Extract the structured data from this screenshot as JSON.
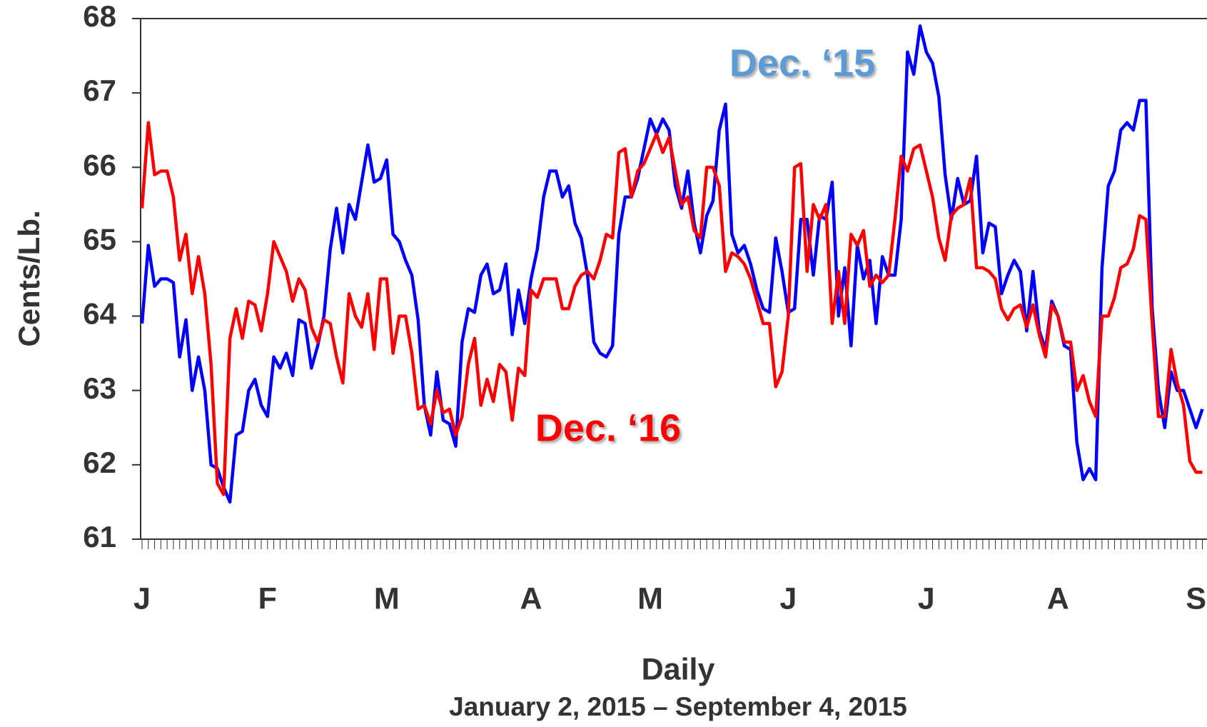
{
  "chart_data": {
    "type": "line",
    "y_label": "Cents/Lb.",
    "x_label": "Daily",
    "subtitle": "January 2, 2015 – September 4, 2015",
    "categories": [
      "J",
      null,
      null,
      null,
      null,
      null,
      null,
      null,
      null,
      null,
      null,
      null,
      null,
      null,
      null,
      null,
      null,
      null,
      null,
      null,
      "F",
      null,
      null,
      null,
      null,
      null,
      null,
      null,
      null,
      null,
      null,
      null,
      null,
      null,
      null,
      null,
      null,
      null,
      null,
      "M",
      null,
      null,
      null,
      null,
      null,
      null,
      null,
      null,
      null,
      null,
      null,
      null,
      null,
      null,
      null,
      null,
      null,
      null,
      null,
      null,
      null,
      null,
      "A",
      null,
      null,
      null,
      null,
      null,
      null,
      null,
      null,
      null,
      null,
      null,
      null,
      null,
      null,
      null,
      null,
      null,
      null,
      "M",
      null,
      null,
      null,
      null,
      null,
      null,
      null,
      null,
      null,
      null,
      null,
      null,
      null,
      null,
      null,
      null,
      null,
      null,
      null,
      null,
      null,
      "J",
      null,
      null,
      null,
      null,
      null,
      null,
      null,
      null,
      null,
      null,
      null,
      null,
      null,
      null,
      null,
      null,
      null,
      null,
      null,
      null,
      null,
      "J",
      null,
      null,
      null,
      null,
      null,
      null,
      null,
      null,
      null,
      null,
      null,
      null,
      null,
      null,
      null,
      null,
      null,
      null,
      null,
      null,
      "A",
      null,
      null,
      null,
      null,
      null,
      null,
      null,
      null,
      null,
      null,
      null,
      null,
      null,
      null,
      null,
      null,
      null,
      null,
      null,
      null,
      null,
      "S",
      null
    ],
    "series": [
      {
        "name": "Dec. ‘15",
        "color": "#0000ff",
        "label_color": "#5b9bd5",
        "values": [
          63.9,
          64.95,
          64.4,
          64.5,
          64.5,
          64.45,
          63.45,
          63.95,
          63.0,
          63.45,
          63.0,
          62.0,
          61.95,
          61.7,
          61.5,
          62.4,
          62.45,
          63.0,
          63.15,
          62.8,
          62.65,
          63.45,
          63.3,
          63.5,
          63.2,
          63.95,
          63.9,
          63.3,
          63.6,
          64.0,
          64.9,
          65.45,
          64.85,
          65.5,
          65.3,
          65.8,
          66.3,
          65.8,
          65.85,
          66.1,
          65.1,
          65.0,
          64.75,
          64.55,
          63.95,
          62.8,
          62.4,
          63.25,
          62.6,
          62.55,
          62.25,
          63.65,
          64.1,
          64.05,
          64.55,
          64.7,
          64.3,
          64.35,
          64.7,
          63.75,
          64.35,
          63.9,
          64.5,
          64.9,
          65.6,
          65.95,
          65.95,
          65.6,
          65.75,
          65.25,
          65.05,
          64.55,
          63.65,
          63.5,
          63.45,
          63.6,
          65.1,
          65.6,
          65.6,
          65.85,
          66.25,
          66.65,
          66.45,
          66.65,
          66.5,
          65.75,
          65.45,
          65.95,
          65.25,
          64.85,
          65.35,
          65.55,
          66.5,
          66.85,
          65.1,
          64.85,
          64.95,
          64.7,
          64.35,
          64.1,
          64.05,
          65.05,
          64.6,
          64.05,
          64.1,
          65.3,
          65.3,
          64.55,
          65.35,
          65.3,
          65.8,
          64.0,
          64.65,
          63.6,
          64.95,
          64.5,
          64.75,
          63.9,
          64.8,
          64.55,
          64.55,
          65.3,
          67.55,
          67.25,
          67.9,
          67.55,
          67.4,
          66.95,
          65.9,
          65.3,
          65.85,
          65.5,
          65.55,
          66.15,
          64.85,
          65.25,
          65.2,
          64.3,
          64.55,
          64.75,
          64.6,
          63.8,
          64.6,
          63.8,
          63.55,
          64.2,
          64.0,
          63.6,
          63.55,
          62.3,
          61.8,
          61.95,
          61.8,
          64.65,
          65.75,
          65.95,
          66.5,
          66.6,
          66.5,
          66.9,
          66.9,
          64.1,
          63.0,
          62.5,
          63.25,
          63.0,
          63.0,
          62.75,
          62.5,
          62.75
        ]
      },
      {
        "name": "Dec. ‘16",
        "color": "#ff0000",
        "label_color": "#ff0000",
        "values": [
          65.45,
          66.6,
          65.9,
          65.95,
          65.95,
          65.6,
          64.75,
          65.1,
          64.3,
          64.8,
          64.3,
          63.35,
          61.75,
          61.6,
          63.7,
          64.1,
          63.7,
          64.2,
          64.15,
          63.8,
          64.3,
          65.0,
          64.8,
          64.6,
          64.2,
          64.5,
          64.35,
          63.85,
          63.65,
          63.95,
          63.9,
          63.45,
          63.1,
          64.3,
          64.0,
          63.85,
          64.3,
          63.55,
          64.5,
          64.5,
          63.5,
          64.0,
          64.0,
          63.5,
          62.75,
          62.8,
          62.55,
          63.0,
          62.7,
          62.75,
          62.4,
          62.65,
          63.35,
          63.7,
          62.8,
          63.15,
          62.85,
          63.35,
          63.25,
          62.6,
          63.3,
          63.2,
          64.35,
          64.25,
          64.5,
          64.5,
          64.5,
          64.1,
          64.1,
          64.4,
          64.55,
          64.6,
          64.5,
          64.75,
          65.1,
          65.05,
          66.2,
          66.25,
          65.6,
          65.95,
          66.05,
          66.25,
          66.45,
          66.2,
          66.4,
          65.95,
          65.5,
          65.6,
          65.15,
          65.05,
          66.0,
          66.0,
          65.75,
          64.6,
          64.85,
          64.8,
          64.7,
          64.5,
          64.2,
          63.9,
          63.9,
          63.05,
          63.25,
          64.0,
          66.0,
          66.05,
          64.6,
          65.5,
          65.3,
          65.5,
          63.9,
          64.6,
          63.9,
          65.1,
          64.95,
          65.15,
          64.4,
          64.55,
          64.45,
          64.55,
          65.3,
          66.15,
          65.95,
          66.25,
          66.3,
          65.95,
          65.6,
          65.05,
          64.75,
          65.35,
          65.45,
          65.5,
          65.85,
          64.65,
          64.65,
          64.6,
          64.5,
          64.1,
          63.95,
          64.1,
          64.15,
          63.85,
          64.15,
          63.75,
          63.45,
          64.15,
          64.0,
          63.65,
          63.65,
          63.0,
          63.2,
          62.85,
          62.65,
          64.0,
          64.0,
          64.25,
          64.65,
          64.7,
          64.9,
          65.35,
          65.3,
          63.9,
          62.65,
          62.65,
          63.55,
          63.1,
          62.8,
          62.05,
          61.9,
          61.9
        ]
      }
    ],
    "ylim": [
      61,
      68
    ],
    "yticks": [
      61,
      62,
      63,
      64,
      65,
      66,
      67,
      68
    ],
    "grid": false
  }
}
